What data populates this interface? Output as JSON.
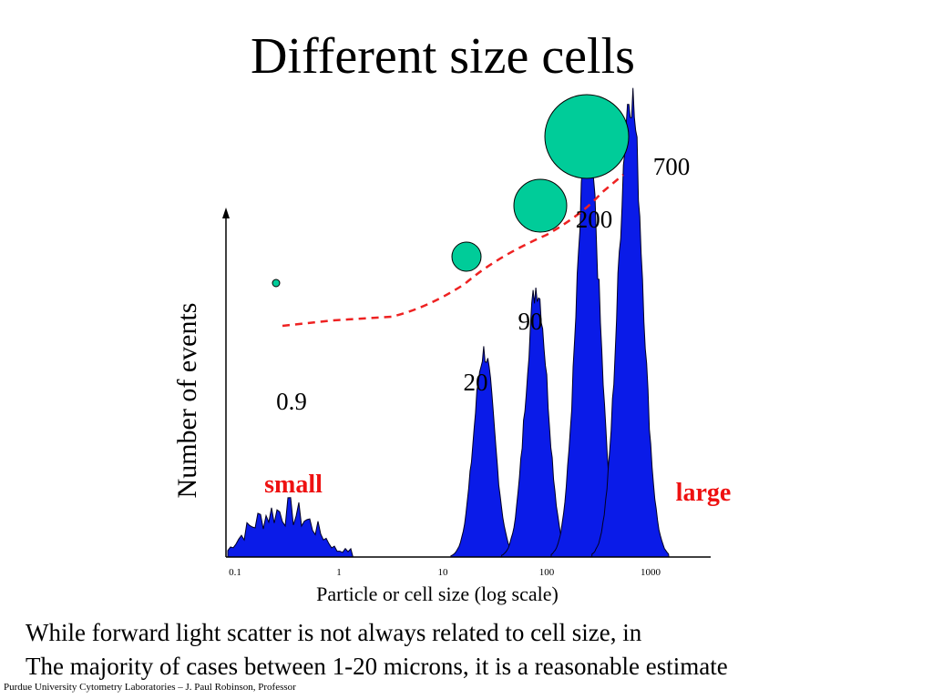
{
  "title": "Different size cells",
  "colors": {
    "peak_fill": "#0a1be8",
    "circle_fill": "#00cc99",
    "trend": "#ee2222",
    "emphasis": "#ee1111"
  },
  "chart_data": {
    "type": "area",
    "x_scale": "log",
    "xlim": [
      0.1,
      3000
    ],
    "ylim": [
      0,
      1
    ],
    "xlabel": "Particle or cell size (log scale)",
    "ylabel": "Number of events",
    "x_ticks": [
      "0.1",
      "1",
      "10",
      "100",
      "1000"
    ],
    "series": [
      {
        "label": "0.9",
        "center": 0.3,
        "height": 0.11,
        "kind": "broad"
      },
      {
        "label": "20",
        "center": 25,
        "height": 0.44,
        "kind": "peak"
      },
      {
        "label": "90",
        "center": 80,
        "height": 0.58,
        "kind": "peak"
      },
      {
        "label": "200",
        "center": 250,
        "height": 0.9,
        "kind": "peak"
      },
      {
        "label": "700",
        "center": 640,
        "height": 1.0,
        "kind": "peak"
      }
    ],
    "annotations": [
      "small",
      "large"
    ]
  },
  "caption": {
    "line1": "While forward light scatter is not always related to cell size, in",
    "line2": "The majority of cases between 1-20 microns, it is a reasonable estimate"
  },
  "footer": "Purdue University Cytometry Laboratories – J. Paul Robinson, Professor"
}
